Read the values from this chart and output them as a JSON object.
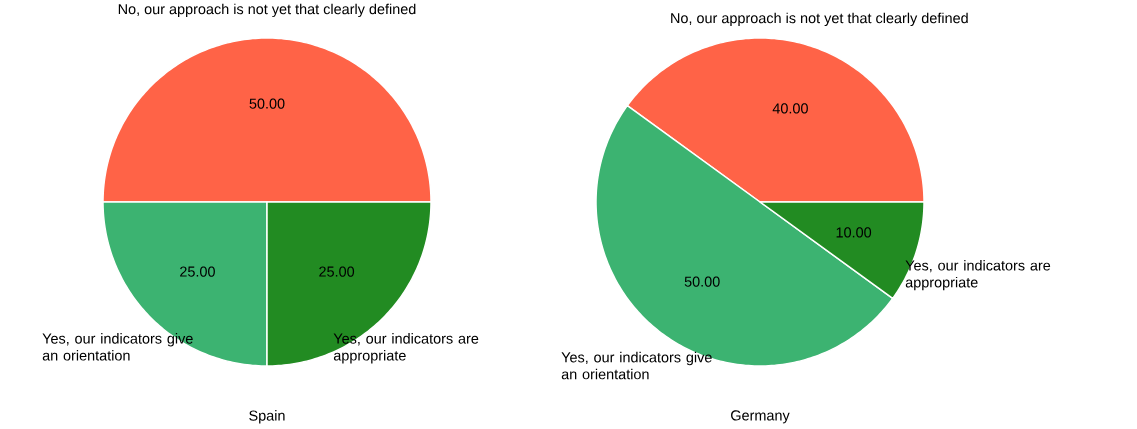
{
  "chart_data": [
    {
      "type": "pie",
      "title": "Spain",
      "categories": [
        "No, our approach is not yet that clearly defined",
        "Yes, our indicators give an orientation",
        "Yes, our indicators are appropriate"
      ],
      "values": [
        50,
        25,
        25
      ],
      "colors": [
        "#ff6347",
        "#3cb371",
        "#228b22"
      ],
      "value_labels": [
        "50.00",
        "25.00",
        "25.00"
      ]
    },
    {
      "type": "pie",
      "title": "Germany",
      "categories": [
        "No, our approach is not yet that clearly defined",
        "Yes, our indicators give an orientation",
        "Yes, our indicators are appropriate"
      ],
      "values": [
        40,
        50,
        10
      ],
      "colors": [
        "#ff6347",
        "#3cb371",
        "#228b22"
      ],
      "value_labels": [
        "40.00",
        "50.00",
        "10.00"
      ]
    }
  ]
}
